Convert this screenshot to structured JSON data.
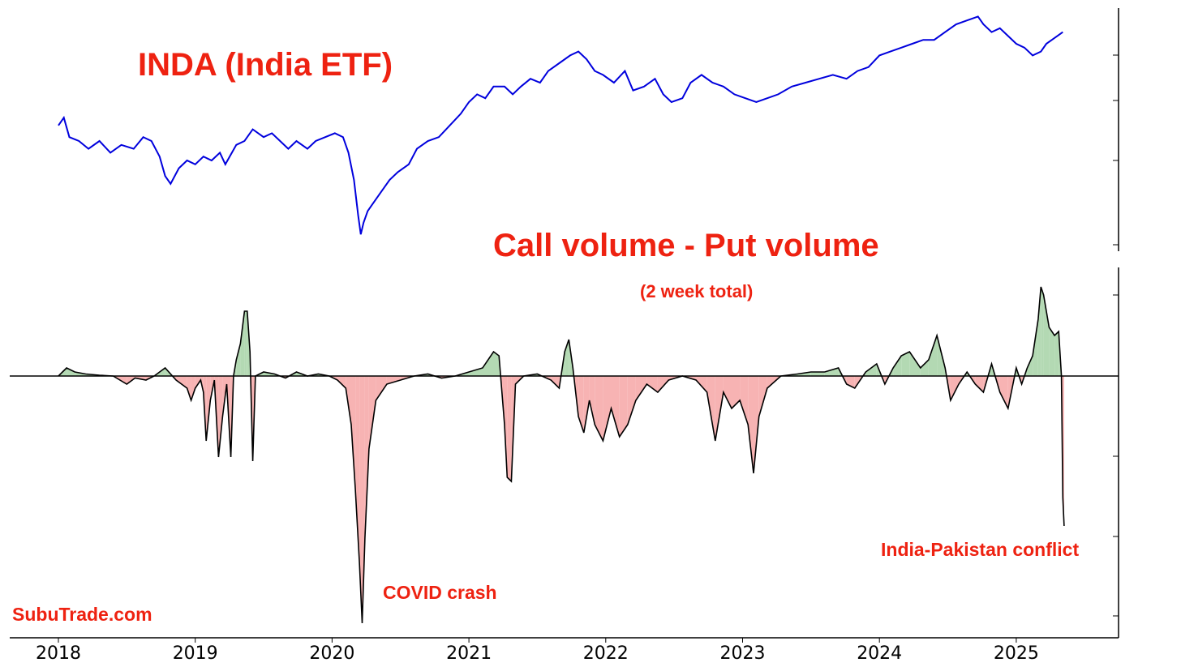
{
  "chart_data": [
    {
      "type": "line",
      "title": "INDA (India ETF)",
      "x_axis": {
        "ticks": [
          "2018",
          "2019",
          "2020",
          "2021",
          "2022",
          "2023",
          "2024",
          "2025"
        ],
        "range": [
          2018.0,
          2025.8
        ]
      },
      "y_axis": {
        "tick_labels_visible": false
      },
      "series": [
        {
          "color": "#0000dd",
          "points": [
            [
              2018.0,
              0.58
            ],
            [
              2018.04,
              0.62
            ],
            [
              2018.08,
              0.52
            ],
            [
              2018.15,
              0.5
            ],
            [
              2018.22,
              0.46
            ],
            [
              2018.3,
              0.5
            ],
            [
              2018.38,
              0.44
            ],
            [
              2018.46,
              0.48
            ],
            [
              2018.55,
              0.46
            ],
            [
              2018.62,
              0.52
            ],
            [
              2018.68,
              0.5
            ],
            [
              2018.74,
              0.42
            ],
            [
              2018.78,
              0.32
            ],
            [
              2018.82,
              0.28
            ],
            [
              2018.88,
              0.36
            ],
            [
              2018.94,
              0.4
            ],
            [
              2019.0,
              0.38
            ],
            [
              2019.06,
              0.42
            ],
            [
              2019.12,
              0.4
            ],
            [
              2019.18,
              0.44
            ],
            [
              2019.22,
              0.38
            ],
            [
              2019.3,
              0.48
            ],
            [
              2019.36,
              0.5
            ],
            [
              2019.42,
              0.56
            ],
            [
              2019.5,
              0.52
            ],
            [
              2019.56,
              0.54
            ],
            [
              2019.62,
              0.5
            ],
            [
              2019.68,
              0.46
            ],
            [
              2019.74,
              0.5
            ],
            [
              2019.82,
              0.46
            ],
            [
              2019.88,
              0.5
            ],
            [
              2019.95,
              0.52
            ],
            [
              2020.02,
              0.54
            ],
            [
              2020.08,
              0.52
            ],
            [
              2020.12,
              0.44
            ],
            [
              2020.16,
              0.3
            ],
            [
              2020.19,
              0.12
            ],
            [
              2020.21,
              0.02
            ],
            [
              2020.23,
              0.08
            ],
            [
              2020.26,
              0.14
            ],
            [
              2020.3,
              0.18
            ],
            [
              2020.36,
              0.24
            ],
            [
              2020.42,
              0.3
            ],
            [
              2020.48,
              0.34
            ],
            [
              2020.56,
              0.38
            ],
            [
              2020.62,
              0.46
            ],
            [
              2020.7,
              0.5
            ],
            [
              2020.78,
              0.52
            ],
            [
              2020.86,
              0.58
            ],
            [
              2020.94,
              0.64
            ],
            [
              2021.0,
              0.7
            ],
            [
              2021.06,
              0.74
            ],
            [
              2021.12,
              0.72
            ],
            [
              2021.18,
              0.78
            ],
            [
              2021.26,
              0.78
            ],
            [
              2021.32,
              0.74
            ],
            [
              2021.38,
              0.78
            ],
            [
              2021.45,
              0.82
            ],
            [
              2021.52,
              0.8
            ],
            [
              2021.58,
              0.86
            ],
            [
              2021.66,
              0.9
            ],
            [
              2021.74,
              0.94
            ],
            [
              2021.8,
              0.96
            ],
            [
              2021.86,
              0.92
            ],
            [
              2021.92,
              0.86
            ],
            [
              2021.98,
              0.84
            ],
            [
              2022.06,
              0.8
            ],
            [
              2022.14,
              0.86
            ],
            [
              2022.2,
              0.76
            ],
            [
              2022.28,
              0.78
            ],
            [
              2022.36,
              0.82
            ],
            [
              2022.42,
              0.74
            ],
            [
              2022.48,
              0.7
            ],
            [
              2022.56,
              0.72
            ],
            [
              2022.62,
              0.8
            ],
            [
              2022.7,
              0.84
            ],
            [
              2022.78,
              0.8
            ],
            [
              2022.86,
              0.78
            ],
            [
              2022.94,
              0.74
            ],
            [
              2023.02,
              0.72
            ],
            [
              2023.1,
              0.7
            ],
            [
              2023.18,
              0.72
            ],
            [
              2023.26,
              0.74
            ],
            [
              2023.36,
              0.78
            ],
            [
              2023.46,
              0.8
            ],
            [
              2023.56,
              0.82
            ],
            [
              2023.66,
              0.84
            ],
            [
              2023.76,
              0.82
            ],
            [
              2023.84,
              0.86
            ],
            [
              2023.92,
              0.88
            ],
            [
              2024.0,
              0.94
            ],
            [
              2024.08,
              0.96
            ],
            [
              2024.16,
              0.98
            ],
            [
              2024.24,
              1.0
            ],
            [
              2024.32,
              1.02
            ],
            [
              2024.4,
              1.02
            ],
            [
              2024.48,
              1.06
            ],
            [
              2024.56,
              1.1
            ],
            [
              2024.64,
              1.12
            ],
            [
              2024.72,
              1.14
            ],
            [
              2024.76,
              1.1
            ],
            [
              2024.82,
              1.06
            ],
            [
              2024.88,
              1.08
            ],
            [
              2024.94,
              1.04
            ],
            [
              2025.0,
              1.0
            ],
            [
              2025.06,
              0.98
            ],
            [
              2025.12,
              0.94
            ],
            [
              2025.18,
              0.96
            ],
            [
              2025.22,
              1.0
            ],
            [
              2025.26,
              1.02
            ],
            [
              2025.3,
              1.04
            ],
            [
              2025.34,
              1.06
            ]
          ]
        }
      ]
    },
    {
      "type": "area",
      "title": "Call volume - Put volume",
      "subtitle": "(2 week total)",
      "x_axis": {
        "ticks": [
          "2018",
          "2019",
          "2020",
          "2021",
          "2022",
          "2023",
          "2024",
          "2025"
        ],
        "range": [
          2018.0,
          2025.8
        ]
      },
      "y_axis": {
        "tick_labels_visible": false,
        "baseline": 0
      },
      "colors": {
        "positive": "#b3d9b3",
        "negative": "#f7b3b3",
        "line": "#000000",
        "zero_line": "#000000"
      },
      "series": [
        {
          "points": [
            [
              2018.0,
              0.0
            ],
            [
              2018.06,
              0.2
            ],
            [
              2018.12,
              0.1
            ],
            [
              2018.2,
              0.05
            ],
            [
              2018.3,
              0.02
            ],
            [
              2018.4,
              0.0
            ],
            [
              2018.5,
              -0.2
            ],
            [
              2018.56,
              -0.05
            ],
            [
              2018.64,
              -0.1
            ],
            [
              2018.7,
              0.0
            ],
            [
              2018.78,
              0.2
            ],
            [
              2018.86,
              -0.1
            ],
            [
              2018.94,
              -0.3
            ],
            [
              2018.97,
              -0.6
            ],
            [
              2019.0,
              -0.3
            ],
            [
              2019.04,
              -0.1
            ],
            [
              2019.06,
              -0.4
            ],
            [
              2019.08,
              -1.6
            ],
            [
              2019.11,
              -0.6
            ],
            [
              2019.14,
              -0.1
            ],
            [
              2019.17,
              -2.0
            ],
            [
              2019.2,
              -1.0
            ],
            [
              2019.23,
              -0.2
            ],
            [
              2019.26,
              -2.0
            ],
            [
              2019.28,
              0.0
            ],
            [
              2019.3,
              0.4
            ],
            [
              2019.33,
              0.8
            ],
            [
              2019.36,
              1.6
            ],
            [
              2019.38,
              1.6
            ],
            [
              2019.4,
              0.6
            ],
            [
              2019.42,
              -2.1
            ],
            [
              2019.44,
              0.0
            ],
            [
              2019.5,
              0.1
            ],
            [
              2019.58,
              0.05
            ],
            [
              2019.66,
              -0.05
            ],
            [
              2019.74,
              0.1
            ],
            [
              2019.82,
              0.0
            ],
            [
              2019.9,
              0.05
            ],
            [
              2019.98,
              0.0
            ],
            [
              2020.04,
              -0.1
            ],
            [
              2020.1,
              -0.3
            ],
            [
              2020.14,
              -1.2
            ],
            [
              2020.17,
              -2.8
            ],
            [
              2020.2,
              -4.6
            ],
            [
              2020.22,
              -6.1
            ],
            [
              2020.24,
              -4.0
            ],
            [
              2020.27,
              -1.8
            ],
            [
              2020.32,
              -0.6
            ],
            [
              2020.4,
              -0.2
            ],
            [
              2020.5,
              -0.1
            ],
            [
              2020.6,
              0.0
            ],
            [
              2020.7,
              0.05
            ],
            [
              2020.8,
              -0.05
            ],
            [
              2020.9,
              0.0
            ],
            [
              2021.0,
              0.1
            ],
            [
              2021.1,
              0.2
            ],
            [
              2021.18,
              0.6
            ],
            [
              2021.22,
              0.5
            ],
            [
              2021.26,
              -1.2
            ],
            [
              2021.28,
              -2.5
            ],
            [
              2021.31,
              -2.6
            ],
            [
              2021.34,
              -0.2
            ],
            [
              2021.4,
              0.0
            ],
            [
              2021.5,
              0.05
            ],
            [
              2021.6,
              -0.1
            ],
            [
              2021.66,
              -0.3
            ],
            [
              2021.7,
              0.6
            ],
            [
              2021.73,
              0.9
            ],
            [
              2021.76,
              0.2
            ],
            [
              2021.8,
              -1.0
            ],
            [
              2021.84,
              -1.4
            ],
            [
              2021.88,
              -0.6
            ],
            [
              2021.92,
              -1.2
            ],
            [
              2021.98,
              -1.6
            ],
            [
              2022.04,
              -0.8
            ],
            [
              2022.1,
              -1.5
            ],
            [
              2022.16,
              -1.2
            ],
            [
              2022.22,
              -0.6
            ],
            [
              2022.3,
              -0.2
            ],
            [
              2022.38,
              -0.4
            ],
            [
              2022.46,
              -0.1
            ],
            [
              2022.56,
              0.0
            ],
            [
              2022.66,
              -0.1
            ],
            [
              2022.74,
              -0.4
            ],
            [
              2022.8,
              -1.6
            ],
            [
              2022.86,
              -0.4
            ],
            [
              2022.92,
              -0.8
            ],
            [
              2022.98,
              -0.6
            ],
            [
              2023.04,
              -1.2
            ],
            [
              2023.08,
              -2.4
            ],
            [
              2023.12,
              -1.0
            ],
            [
              2023.18,
              -0.3
            ],
            [
              2023.28,
              0.0
            ],
            [
              2023.4,
              0.05
            ],
            [
              2023.5,
              0.1
            ],
            [
              2023.6,
              0.1
            ],
            [
              2023.7,
              0.2
            ],
            [
              2023.76,
              -0.2
            ],
            [
              2023.82,
              -0.3
            ],
            [
              2023.9,
              0.1
            ],
            [
              2023.98,
              0.3
            ],
            [
              2024.04,
              -0.2
            ],
            [
              2024.1,
              0.2
            ],
            [
              2024.16,
              0.5
            ],
            [
              2024.22,
              0.6
            ],
            [
              2024.3,
              0.2
            ],
            [
              2024.36,
              0.4
            ],
            [
              2024.42,
              1.0
            ],
            [
              2024.48,
              0.2
            ],
            [
              2024.52,
              -0.6
            ],
            [
              2024.58,
              -0.2
            ],
            [
              2024.64,
              0.1
            ],
            [
              2024.7,
              -0.2
            ],
            [
              2024.76,
              -0.4
            ],
            [
              2024.82,
              0.3
            ],
            [
              2024.88,
              -0.4
            ],
            [
              2024.94,
              -0.8
            ],
            [
              2025.0,
              0.2
            ],
            [
              2025.04,
              -0.2
            ],
            [
              2025.08,
              0.2
            ],
            [
              2025.12,
              0.5
            ],
            [
              2025.16,
              1.4
            ],
            [
              2025.18,
              2.2
            ],
            [
              2025.2,
              2.0
            ],
            [
              2025.24,
              1.2
            ],
            [
              2025.28,
              1.0
            ],
            [
              2025.31,
              1.1
            ],
            [
              2025.33,
              0.0
            ],
            [
              2025.34,
              -3.0
            ],
            [
              2025.35,
              -3.7
            ]
          ]
        }
      ],
      "annotations": [
        "COVID crash",
        "India-Pakistan conflict"
      ]
    }
  ],
  "watermark": "SubuTrade.com"
}
